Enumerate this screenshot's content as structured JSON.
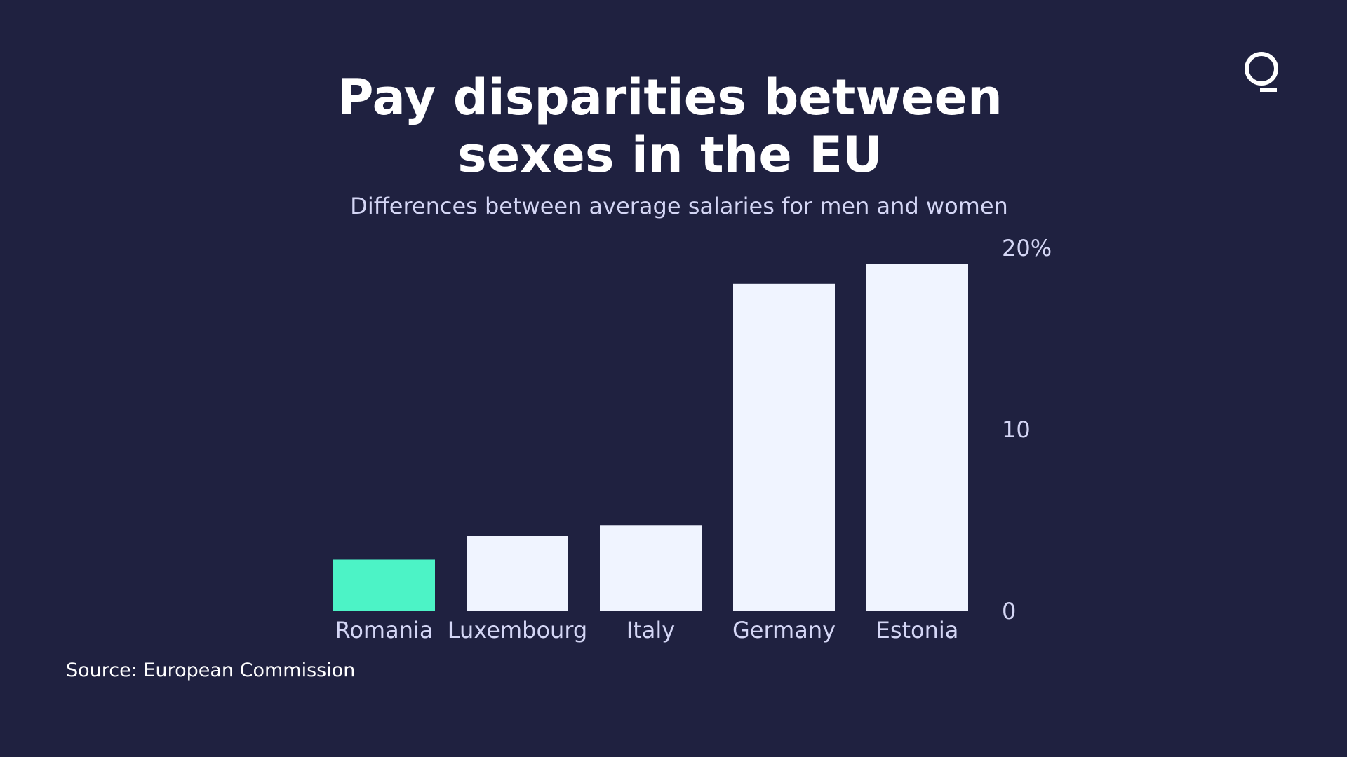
{
  "header": {
    "title_line1": "Pay disparities between",
    "title_line2": "sexes in the EU",
    "subtitle": "Differences between average salaries for men and women",
    "source": "Source: European Commission"
  },
  "logo": {
    "icon": "q-logo-icon"
  },
  "colors": {
    "background": "#1f2140",
    "highlight_bar": "#4cf3c6",
    "bar": "#f0f4ff",
    "text": "#ffffff",
    "muted_text": "#d4d6f5"
  },
  "chart_data": {
    "type": "bar",
    "categories": [
      "Romania",
      "Luxembourg",
      "Italy",
      "Germany",
      "Estonia"
    ],
    "values": [
      2.8,
      4.1,
      4.7,
      18.0,
      19.1
    ],
    "highlight": "Romania",
    "title": "Pay disparities between sexes in the EU",
    "subtitle": "Differences between average salaries for men and women",
    "xlabel": "",
    "ylabel": "",
    "ylim": [
      0,
      20
    ],
    "yticks": [
      0,
      10,
      20
    ],
    "ytick_labels": [
      "0",
      "10",
      "20%"
    ],
    "y_axis_position": "right",
    "grid": false,
    "source": "Source: European Commission"
  }
}
